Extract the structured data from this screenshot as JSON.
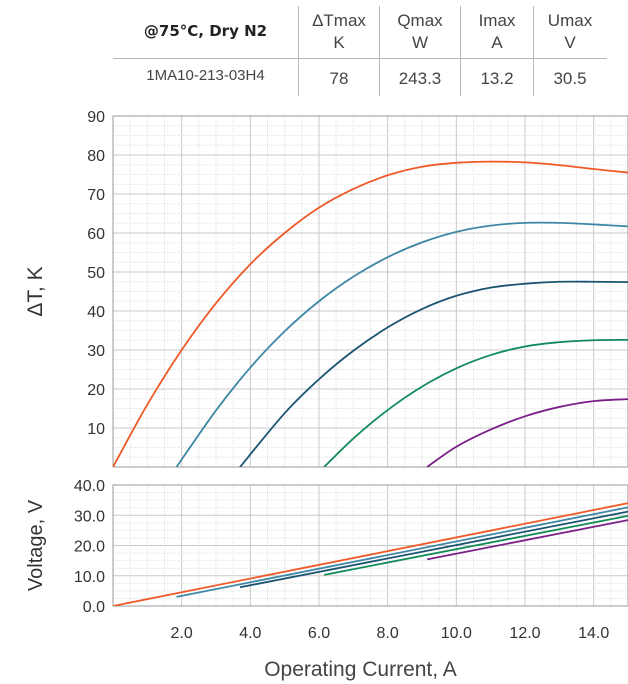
{
  "spec_table": {
    "condition": "@75°C, Dry N2",
    "columns": [
      {
        "name": "ΔTmax",
        "unit": "K"
      },
      {
        "name": "Qmax",
        "unit": "W"
      },
      {
        "name": "Imax",
        "unit": "A"
      },
      {
        "name": "Umax",
        "unit": "V"
      }
    ],
    "model": "1MA10-213-03H4",
    "values": [
      "78",
      "243.3",
      "13.2",
      "30.5"
    ]
  },
  "chart_data": [
    {
      "type": "line",
      "ylabel": "ΔT, K",
      "xlim": [
        0,
        15
      ],
      "ylim": [
        0,
        90
      ],
      "yticks": [
        "10",
        "20",
        "30",
        "40",
        "50",
        "60",
        "70",
        "80",
        "90"
      ],
      "grid": true,
      "series": [
        {
          "color": "#f05a28",
          "points": [
            [
              0,
              0
            ],
            [
              1,
              16
            ],
            [
              2,
              30
            ],
            [
              3,
              42
            ],
            [
              4,
              52
            ],
            [
              5,
              60
            ],
            [
              6,
              66.5
            ],
            [
              7,
              71.3
            ],
            [
              8,
              74.8
            ],
            [
              9,
              77
            ],
            [
              10,
              78
            ],
            [
              11,
              78.3
            ],
            [
              12,
              78.1
            ],
            [
              13,
              77.4
            ],
            [
              14,
              76.4
            ],
            [
              15,
              75.5
            ]
          ]
        },
        {
          "color": "#3f87a6",
          "points": [
            [
              1.85,
              0
            ],
            [
              3,
              14.5
            ],
            [
              4,
              25.5
            ],
            [
              5,
              34.8
            ],
            [
              6,
              42.5
            ],
            [
              7,
              48.8
            ],
            [
              8,
              53.8
            ],
            [
              9,
              57.6
            ],
            [
              10,
              60.3
            ],
            [
              11,
              61.9
            ],
            [
              12,
              62.6
            ],
            [
              13,
              62.6
            ],
            [
              14,
              62.2
            ],
            [
              15,
              61.7
            ]
          ]
        },
        {
          "color": "#1a5472",
          "points": [
            [
              3.7,
              0
            ],
            [
              5,
              13.8
            ],
            [
              6,
              22.5
            ],
            [
              7,
              29.8
            ],
            [
              8,
              35.8
            ],
            [
              9,
              40.5
            ],
            [
              10,
              43.9
            ],
            [
              11,
              46
            ],
            [
              12,
              47
            ],
            [
              13,
              47.5
            ],
            [
              14,
              47.5
            ],
            [
              15,
              47.4
            ]
          ]
        },
        {
          "color": "#128a5a",
          "points": [
            [
              6.15,
              0
            ],
            [
              7,
              7.3
            ],
            [
              8,
              14.6
            ],
            [
              9,
              20.6
            ],
            [
              10,
              25.3
            ],
            [
              11,
              28.7
            ],
            [
              12,
              30.9
            ],
            [
              13,
              32
            ],
            [
              14,
              32.5
            ],
            [
              15,
              32.6
            ]
          ]
        },
        {
          "color": "#7a2088",
          "points": [
            [
              9.15,
              0
            ],
            [
              10,
              5.2
            ],
            [
              11,
              9.6
            ],
            [
              12,
              13
            ],
            [
              13,
              15.4
            ],
            [
              14,
              16.9
            ],
            [
              15,
              17.4
            ]
          ]
        }
      ]
    },
    {
      "type": "line",
      "xlabel": "Operating Current, A",
      "ylabel": "Voltage, V",
      "xlim": [
        0,
        15
      ],
      "ylim": [
        0,
        40
      ],
      "xticks": [
        "2.0",
        "4.0",
        "6.0",
        "8.0",
        "10.0",
        "12.0",
        "14.0"
      ],
      "yticks": [
        "0.0",
        "10.0",
        "20.0",
        "30.0",
        "40.0"
      ],
      "grid": true,
      "series": [
        {
          "color": "#f05a28",
          "points": [
            [
              0,
              0
            ],
            [
              15,
              34
            ]
          ]
        },
        {
          "color": "#3f87a6",
          "points": [
            [
              1.85,
              3
            ],
            [
              15,
              32.6
            ]
          ]
        },
        {
          "color": "#1a5472",
          "points": [
            [
              3.7,
              6.2
            ],
            [
              15,
              31.2
            ]
          ]
        },
        {
          "color": "#128a5a",
          "points": [
            [
              6.15,
              10.3
            ],
            [
              15,
              29.8
            ]
          ]
        },
        {
          "color": "#7a2088",
          "points": [
            [
              9.15,
              15.4
            ],
            [
              15,
              28.4
            ]
          ]
        }
      ]
    }
  ]
}
